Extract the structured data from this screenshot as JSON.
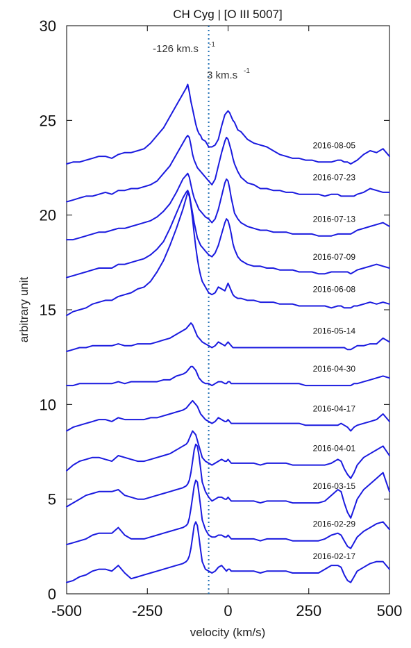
{
  "chart_data": {
    "type": "line",
    "title": "CH Cyg | [O III 5007]",
    "xlabel": "velocity (km/s)",
    "ylabel": "arbitrary unit",
    "xlim": [
      -500,
      500
    ],
    "ylim": [
      0,
      30
    ],
    "xticks": [
      "-500",
      "-250",
      "0",
      "250",
      "500"
    ],
    "xtick_values": [
      -500,
      -250,
      0,
      250,
      500
    ],
    "yticks": [
      "0",
      "5",
      "10",
      "15",
      "20",
      "25",
      "30"
    ],
    "ytick_values": [
      0,
      5,
      10,
      15,
      20,
      25,
      30
    ],
    "grid": false,
    "line_color": "#1a1adf",
    "reference_line": {
      "x": -60,
      "style": "dotted",
      "color": "#1f6fb5"
    },
    "annotations": {
      "blue_peak": {
        "text": "-126 km.s",
        "sup": "-1",
        "x": -126
      },
      "red_peak": {
        "text": "3 km.s",
        "sup": "-1",
        "x": 3
      }
    },
    "x": [
      -500,
      -480,
      -460,
      -440,
      -420,
      -400,
      -380,
      -360,
      -340,
      -320,
      -300,
      -280,
      -260,
      -240,
      -220,
      -200,
      -180,
      -160,
      -140,
      -130,
      -125,
      -120,
      -115,
      -110,
      -105,
      -100,
      -95,
      -90,
      -85,
      -80,
      -70,
      -60,
      -50,
      -40,
      -30,
      -20,
      -10,
      -5,
      0,
      5,
      10,
      15,
      20,
      30,
      40,
      60,
      80,
      100,
      120,
      140,
      160,
      180,
      200,
      220,
      240,
      260,
      280,
      300,
      320,
      340,
      350,
      360,
      370,
      380,
      390,
      400,
      420,
      440,
      460,
      480,
      500
    ],
    "series": [
      {
        "date": "2016-08-05",
        "values": [
          22.7,
          22.8,
          22.8,
          22.9,
          23.0,
          23.1,
          23.1,
          23.0,
          23.2,
          23.3,
          23.3,
          23.4,
          23.5,
          23.8,
          24.2,
          24.6,
          25.2,
          25.8,
          26.4,
          26.7,
          26.9,
          26.5,
          26.0,
          25.6,
          25.2,
          24.8,
          24.5,
          24.3,
          24.2,
          24.0,
          23.9,
          23.6,
          23.6,
          23.7,
          24.0,
          24.7,
          25.3,
          25.4,
          25.5,
          25.4,
          25.2,
          25.0,
          24.9,
          24.5,
          24.4,
          24.0,
          23.8,
          23.7,
          23.6,
          23.4,
          23.2,
          23.1,
          23.0,
          23.0,
          22.9,
          22.9,
          22.8,
          22.8,
          22.8,
          22.9,
          22.9,
          22.8,
          22.8,
          22.7,
          22.8,
          22.9,
          23.2,
          23.4,
          23.3,
          23.5,
          23.1
        ]
      },
      {
        "date": "2016-07-23",
        "values": [
          20.7,
          20.8,
          20.9,
          21.0,
          21.0,
          21.1,
          21.2,
          21.1,
          21.3,
          21.3,
          21.4,
          21.4,
          21.5,
          21.6,
          21.8,
          22.2,
          22.6,
          23.2,
          23.8,
          24.1,
          24.2,
          24.1,
          23.7,
          23.2,
          22.9,
          22.7,
          22.5,
          22.4,
          22.3,
          22.2,
          22.0,
          21.8,
          21.6,
          21.9,
          22.6,
          23.3,
          23.9,
          24.1,
          24.0,
          23.7,
          23.4,
          23.0,
          22.7,
          22.3,
          22.0,
          21.7,
          21.6,
          21.4,
          21.4,
          21.3,
          21.3,
          21.2,
          21.2,
          21.1,
          21.1,
          21.1,
          21.1,
          21.0,
          21.1,
          21.1,
          21.0,
          21.0,
          21.0,
          21.0,
          21.0,
          21.1,
          21.2,
          21.4,
          21.3,
          21.2,
          21.2
        ]
      },
      {
        "date": "2016-07-13",
        "values": [
          18.7,
          18.7,
          18.8,
          18.9,
          19.0,
          19.1,
          19.1,
          19.2,
          19.3,
          19.3,
          19.4,
          19.5,
          19.6,
          19.7,
          19.9,
          20.2,
          20.6,
          21.2,
          21.9,
          22.1,
          22.2,
          22.0,
          21.6,
          21.2,
          20.9,
          20.7,
          20.5,
          20.3,
          20.2,
          20.1,
          19.9,
          19.8,
          19.6,
          19.8,
          20.3,
          21.0,
          21.7,
          21.9,
          21.8,
          21.4,
          20.9,
          20.5,
          20.1,
          19.8,
          19.6,
          19.4,
          19.3,
          19.2,
          19.2,
          19.1,
          19.1,
          19.1,
          19.0,
          19.0,
          19.0,
          19.0,
          18.9,
          18.9,
          18.9,
          19.0,
          19.0,
          19.0,
          19.0,
          19.0,
          19.1,
          19.2,
          19.3,
          19.4,
          19.5,
          19.6,
          19.4
        ]
      },
      {
        "date": "2016-07-09",
        "values": [
          16.7,
          16.8,
          16.9,
          17.0,
          17.1,
          17.2,
          17.2,
          17.2,
          17.4,
          17.4,
          17.5,
          17.6,
          17.7,
          17.9,
          18.2,
          18.6,
          19.3,
          20.1,
          20.9,
          21.2,
          21.3,
          21.1,
          20.6,
          20.1,
          19.6,
          19.2,
          18.8,
          18.6,
          18.4,
          18.3,
          18.1,
          17.9,
          17.8,
          18.0,
          18.4,
          19.0,
          19.6,
          19.8,
          19.7,
          19.4,
          19.0,
          18.5,
          18.2,
          17.8,
          17.6,
          17.4,
          17.3,
          17.3,
          17.2,
          17.2,
          17.1,
          17.1,
          17.1,
          17.0,
          17.0,
          17.0,
          16.9,
          16.9,
          17.0,
          17.0,
          17.0,
          17.0,
          17.0,
          16.9,
          17.0,
          17.1,
          17.2,
          17.3,
          17.4,
          17.3,
          17.2
        ]
      },
      {
        "date": "2016-06-08",
        "values": [
          14.7,
          14.9,
          15.0,
          15.1,
          15.3,
          15.4,
          15.5,
          15.5,
          15.7,
          15.8,
          15.9,
          16.1,
          16.2,
          16.5,
          17.0,
          17.6,
          18.4,
          19.3,
          20.3,
          20.9,
          21.2,
          21.0,
          20.5,
          19.8,
          19.0,
          18.3,
          17.7,
          17.2,
          16.8,
          16.5,
          16.2,
          15.9,
          15.8,
          15.9,
          16.2,
          16.1,
          16.0,
          16.2,
          16.4,
          16.2,
          16.0,
          15.8,
          15.7,
          15.6,
          15.6,
          15.5,
          15.5,
          15.4,
          15.4,
          15.4,
          15.3,
          15.3,
          15.3,
          15.2,
          15.2,
          15.2,
          15.2,
          15.2,
          15.1,
          15.2,
          15.2,
          15.1,
          15.1,
          15.1,
          15.2,
          15.2,
          15.3,
          15.4,
          15.3,
          15.4,
          15.3
        ]
      },
      {
        "date": "2016-05-14",
        "values": [
          12.8,
          12.9,
          13.0,
          13.0,
          13.1,
          13.1,
          13.1,
          13.1,
          13.2,
          13.1,
          13.1,
          13.2,
          13.2,
          13.2,
          13.3,
          13.4,
          13.5,
          13.7,
          13.9,
          14.0,
          14.1,
          14.2,
          14.3,
          14.2,
          14.0,
          13.8,
          13.6,
          13.5,
          13.4,
          13.3,
          13.2,
          13.1,
          13.0,
          13.1,
          13.3,
          13.2,
          13.1,
          13.2,
          13.3,
          13.2,
          13.1,
          13.0,
          13.0,
          13.0,
          13.0,
          13.0,
          13.0,
          13.0,
          13.0,
          13.0,
          13.0,
          13.0,
          13.0,
          13.0,
          13.0,
          13.0,
          13.0,
          13.0,
          13.0,
          13.0,
          13.0,
          13.0,
          12.9,
          12.9,
          13.0,
          13.1,
          13.1,
          13.2,
          13.2,
          13.5,
          13.3
        ]
      },
      {
        "date": "2016-04-30",
        "values": [
          11.0,
          11.0,
          11.1,
          11.1,
          11.1,
          11.1,
          11.1,
          11.1,
          11.2,
          11.1,
          11.2,
          11.2,
          11.2,
          11.2,
          11.2,
          11.3,
          11.3,
          11.5,
          11.6,
          11.7,
          11.8,
          11.9,
          12.0,
          12.0,
          11.9,
          11.8,
          11.6,
          11.4,
          11.3,
          11.2,
          11.1,
          11.1,
          11.0,
          11.1,
          11.2,
          11.2,
          11.1,
          11.1,
          11.2,
          11.2,
          11.1,
          11.1,
          11.1,
          11.1,
          11.1,
          11.1,
          11.1,
          11.1,
          11.1,
          11.1,
          11.1,
          11.1,
          11.1,
          11.1,
          11.0,
          11.0,
          11.0,
          11.0,
          11.0,
          11.0,
          11.0,
          11.0,
          11.0,
          11.0,
          11.1,
          11.1,
          11.2,
          11.3,
          11.4,
          11.5,
          11.4
        ]
      },
      {
        "date": "2016-04-17",
        "values": [
          8.6,
          8.8,
          8.9,
          9.0,
          9.1,
          9.2,
          9.2,
          9.1,
          9.3,
          9.2,
          9.2,
          9.2,
          9.2,
          9.3,
          9.3,
          9.4,
          9.5,
          9.6,
          9.7,
          9.8,
          9.9,
          10.0,
          10.1,
          10.2,
          10.1,
          10.0,
          9.9,
          9.7,
          9.5,
          9.4,
          9.2,
          9.1,
          9.0,
          9.1,
          9.3,
          9.2,
          9.1,
          9.1,
          9.2,
          9.1,
          9.0,
          9.0,
          9.0,
          9.0,
          9.0,
          9.0,
          9.0,
          9.0,
          9.0,
          9.0,
          9.0,
          9.0,
          9.0,
          9.0,
          8.9,
          8.9,
          8.9,
          8.9,
          8.9,
          8.9,
          9.0,
          8.9,
          8.8,
          8.6,
          8.8,
          8.9,
          9.0,
          9.1,
          9.2,
          9.5,
          9.1
        ]
      },
      {
        "date": "2016-04-01",
        "values": [
          6.5,
          6.8,
          7.0,
          7.1,
          7.2,
          7.2,
          7.1,
          7.0,
          7.3,
          7.2,
          7.1,
          7.0,
          7.0,
          7.1,
          7.2,
          7.3,
          7.4,
          7.6,
          7.8,
          7.9,
          8.0,
          8.2,
          8.4,
          8.6,
          8.5,
          8.4,
          8.1,
          7.8,
          7.5,
          7.2,
          7.0,
          6.9,
          6.8,
          6.9,
          7.0,
          7.1,
          7.0,
          7.0,
          7.1,
          7.0,
          6.9,
          6.9,
          6.9,
          6.9,
          6.9,
          6.9,
          6.9,
          6.8,
          6.9,
          6.9,
          6.9,
          6.9,
          6.8,
          6.8,
          6.8,
          6.8,
          6.8,
          6.8,
          6.9,
          7.1,
          7.0,
          6.6,
          6.3,
          6.1,
          6.4,
          6.8,
          7.2,
          7.4,
          7.6,
          7.8,
          7.3
        ]
      },
      {
        "date": "2016-03-15",
        "values": [
          4.6,
          4.8,
          5.0,
          5.2,
          5.3,
          5.4,
          5.4,
          5.4,
          5.5,
          5.2,
          5.1,
          5.0,
          5.0,
          5.1,
          5.2,
          5.3,
          5.4,
          5.5,
          5.6,
          5.7,
          5.8,
          6.0,
          6.4,
          7.0,
          7.6,
          7.9,
          7.8,
          7.3,
          6.6,
          5.9,
          5.4,
          5.1,
          4.9,
          5.0,
          5.1,
          5.1,
          5.0,
          5.0,
          5.1,
          5.0,
          4.9,
          4.9,
          4.9,
          4.9,
          4.9,
          4.9,
          4.9,
          4.8,
          4.9,
          4.9,
          4.9,
          4.9,
          4.8,
          4.8,
          4.8,
          4.8,
          4.8,
          4.9,
          5.2,
          5.5,
          5.4,
          4.8,
          4.3,
          4.0,
          4.5,
          5.0,
          5.5,
          5.8,
          6.1,
          6.4,
          5.4
        ]
      },
      {
        "date": "2016-02-29",
        "values": [
          2.6,
          2.7,
          2.8,
          2.9,
          3.1,
          3.2,
          3.2,
          3.2,
          3.5,
          3.1,
          2.9,
          2.9,
          2.9,
          3.0,
          3.1,
          3.2,
          3.3,
          3.4,
          3.5,
          3.6,
          3.7,
          4.0,
          4.5,
          5.1,
          5.7,
          6.0,
          5.9,
          5.3,
          4.6,
          3.9,
          3.4,
          3.1,
          3.0,
          3.0,
          3.1,
          3.1,
          3.0,
          3.0,
          3.1,
          3.0,
          2.9,
          2.9,
          2.9,
          2.9,
          2.9,
          2.9,
          2.9,
          2.8,
          2.9,
          2.9,
          2.9,
          2.9,
          2.8,
          2.8,
          2.8,
          2.8,
          2.8,
          2.9,
          3.1,
          3.2,
          3.1,
          2.8,
          2.5,
          2.4,
          2.7,
          3.0,
          3.3,
          3.5,
          3.7,
          3.8,
          3.4
        ]
      },
      {
        "date": "2016-02-17",
        "values": [
          0.6,
          0.7,
          0.9,
          1.0,
          1.2,
          1.3,
          1.3,
          1.2,
          1.5,
          1.1,
          0.8,
          0.9,
          1.0,
          1.1,
          1.2,
          1.3,
          1.4,
          1.5,
          1.6,
          1.7,
          1.8,
          2.0,
          2.4,
          3.0,
          3.6,
          3.8,
          3.6,
          3.0,
          2.3,
          1.7,
          1.3,
          1.2,
          1.1,
          1.2,
          1.4,
          1.5,
          1.3,
          1.2,
          1.3,
          1.3,
          1.2,
          1.2,
          1.2,
          1.2,
          1.2,
          1.2,
          1.2,
          1.1,
          1.2,
          1.2,
          1.2,
          1.2,
          1.1,
          1.1,
          1.1,
          1.1,
          1.1,
          1.3,
          1.5,
          1.5,
          1.4,
          1.0,
          0.7,
          0.6,
          0.9,
          1.2,
          1.4,
          1.6,
          1.7,
          1.7,
          1.3
        ]
      }
    ]
  }
}
